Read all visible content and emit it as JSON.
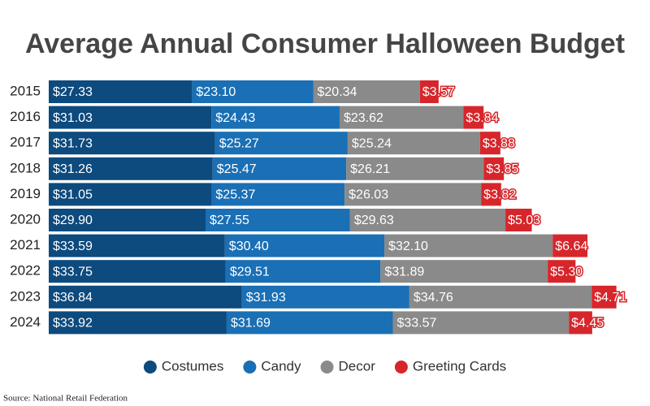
{
  "chart_data": {
    "type": "stacked-bar-horizontal",
    "title": "Average Annual Consumer Halloween Budget",
    "source": "Source: National Retail Federation",
    "categories": [
      "2015",
      "2016",
      "2017",
      "2018",
      "2019",
      "2020",
      "2021",
      "2022",
      "2023",
      "2024"
    ],
    "xlim": [
      0,
      110
    ],
    "series": [
      {
        "name": "Costumes",
        "color": "#0d4a7e",
        "values": [
          27.33,
          31.03,
          31.73,
          31.26,
          31.05,
          29.9,
          33.59,
          33.75,
          36.84,
          33.92
        ],
        "value_labels": [
          "$27.33",
          "$31.03",
          "$31.73",
          "$31.26",
          "$31.05",
          "$29.90",
          "$33.59",
          "$33.75",
          "$36.84",
          "$33.92"
        ]
      },
      {
        "name": "Candy",
        "color": "#1a6fb5",
        "values": [
          23.1,
          24.43,
          25.27,
          25.47,
          25.37,
          27.55,
          30.4,
          29.51,
          31.93,
          31.69
        ],
        "value_labels": [
          "$23.10",
          "$24.43",
          "$25.27",
          "$25.47",
          "$25.37",
          "$27.55",
          "$30.40",
          "$29.51",
          "$31.93",
          "$31.69"
        ]
      },
      {
        "name": "Decor",
        "color": "#8a8a8a",
        "values": [
          20.34,
          23.62,
          25.24,
          26.21,
          26.03,
          29.63,
          32.1,
          31.89,
          34.76,
          33.57
        ],
        "value_labels": [
          "$20.34",
          "$23.62",
          "$25.24",
          "$26.21",
          "$26.03",
          "$29.63",
          "$32.10",
          "$31.89",
          "$34.76",
          "$33.57"
        ]
      },
      {
        "name": "Greeting Cards",
        "color": "#d7262b",
        "values": [
          3.57,
          3.84,
          3.88,
          3.85,
          3.82,
          5.03,
          6.64,
          5.3,
          4.71,
          4.45
        ],
        "value_labels": [
          "$3.57",
          "$3.84",
          "$3.88",
          "$3.85",
          "$3.82",
          "$5.03",
          "$6.64",
          "$5.30",
          "$4.71",
          "$4.45"
        ]
      }
    ]
  }
}
